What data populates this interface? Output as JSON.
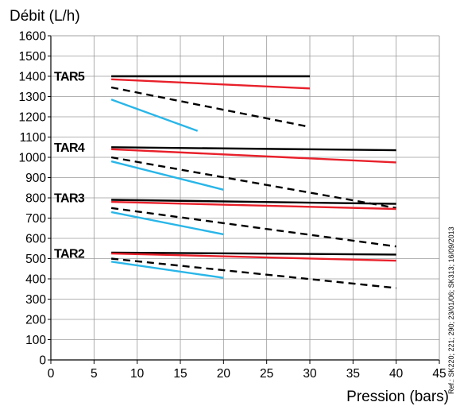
{
  "chart_data": {
    "type": "line",
    "ylabel": "Débit (L/h)",
    "xlabel": "Pression (bars)",
    "xlim": [
      0,
      45
    ],
    "ylim": [
      0,
      1600
    ],
    "x_ticks": [
      "0",
      "5",
      "10",
      "15",
      "20",
      "25",
      "30",
      "35",
      "40",
      "45"
    ],
    "y_ticks": [
      "0",
      "100",
      "200",
      "300",
      "400",
      "500",
      "600",
      "700",
      "800",
      "900",
      "1000",
      "1100",
      "1200",
      "1300",
      "1400",
      "1500",
      "1600"
    ],
    "grid": true,
    "side_note": "Ref.: SK220; 221; 290; 23/01/06; SK313; 16/09/2013",
    "colors": {
      "black": "#000000",
      "red": "#e8202a",
      "blue": "#29b6e8"
    },
    "groups": [
      {
        "label": "TAR5",
        "label_y": 1400,
        "lines": [
          {
            "color": "black",
            "dash": false,
            "x": [
              7,
              30
            ],
            "y": [
              1400,
              1400
            ]
          },
          {
            "color": "red",
            "dash": false,
            "x": [
              7,
              30
            ],
            "y": [
              1385,
              1340
            ]
          },
          {
            "color": "black",
            "dash": true,
            "x": [
              7,
              30
            ],
            "y": [
              1345,
              1150
            ]
          },
          {
            "color": "blue",
            "dash": false,
            "x": [
              7,
              17
            ],
            "y": [
              1285,
              1130
            ]
          }
        ]
      },
      {
        "label": "TAR4",
        "label_y": 1050,
        "lines": [
          {
            "color": "black",
            "dash": false,
            "x": [
              7,
              40
            ],
            "y": [
              1050,
              1035
            ]
          },
          {
            "color": "red",
            "dash": false,
            "x": [
              7,
              40
            ],
            "y": [
              1040,
              975
            ]
          },
          {
            "color": "black",
            "dash": true,
            "x": [
              7,
              40
            ],
            "y": [
              1000,
              750
            ]
          },
          {
            "color": "blue",
            "dash": false,
            "x": [
              7,
              20
            ],
            "y": [
              980,
              840
            ]
          }
        ]
      },
      {
        "label": "TAR3",
        "label_y": 800,
        "lines": [
          {
            "color": "black",
            "dash": false,
            "x": [
              7,
              40
            ],
            "y": [
              790,
              770
            ]
          },
          {
            "color": "red",
            "dash": false,
            "x": [
              7,
              40
            ],
            "y": [
              780,
              745
            ]
          },
          {
            "color": "black",
            "dash": true,
            "x": [
              7,
              40
            ],
            "y": [
              750,
              560
            ]
          },
          {
            "color": "blue",
            "dash": false,
            "x": [
              7,
              20
            ],
            "y": [
              730,
              620
            ]
          }
        ]
      },
      {
        "label": "TAR2",
        "label_y": 525,
        "lines": [
          {
            "color": "black",
            "dash": false,
            "x": [
              7,
              40
            ],
            "y": [
              530,
              520
            ]
          },
          {
            "color": "red",
            "dash": false,
            "x": [
              7,
              40
            ],
            "y": [
              525,
              490
            ]
          },
          {
            "color": "black",
            "dash": true,
            "x": [
              7,
              40
            ],
            "y": [
              500,
              355
            ]
          },
          {
            "color": "blue",
            "dash": false,
            "x": [
              7,
              20
            ],
            "y": [
              485,
              405
            ]
          }
        ]
      }
    ]
  }
}
